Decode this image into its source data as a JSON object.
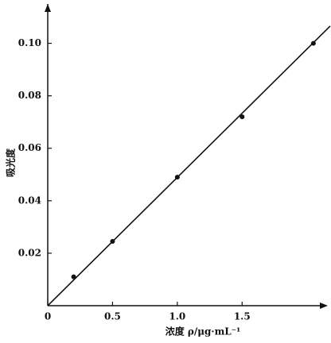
{
  "chart_data": {
    "type": "scatter",
    "xlabel": "浓度 ρ/μg·mL⁻¹",
    "ylabel": "吸光度",
    "x": [
      0.2,
      0.5,
      1.0,
      1.5,
      2.05
    ],
    "y": [
      0.011,
      0.0245,
      0.049,
      0.072,
      0.1
    ],
    "fit_line": {
      "x": [
        0,
        2.18
      ],
      "y": [
        0,
        0.1066
      ]
    },
    "color": "#111111",
    "xlim": [
      0,
      2.1
    ],
    "ylim": [
      0,
      0.115
    ],
    "xticks": [
      0,
      0.5,
      {
        "value": 1,
        "label": "1.0"
      },
      1.5
    ],
    "yticks": [
      0.02,
      0.04,
      0.06,
      0.08,
      {
        "value": 0.1,
        "label": "0.10"
      }
    ],
    "grid": false
  }
}
